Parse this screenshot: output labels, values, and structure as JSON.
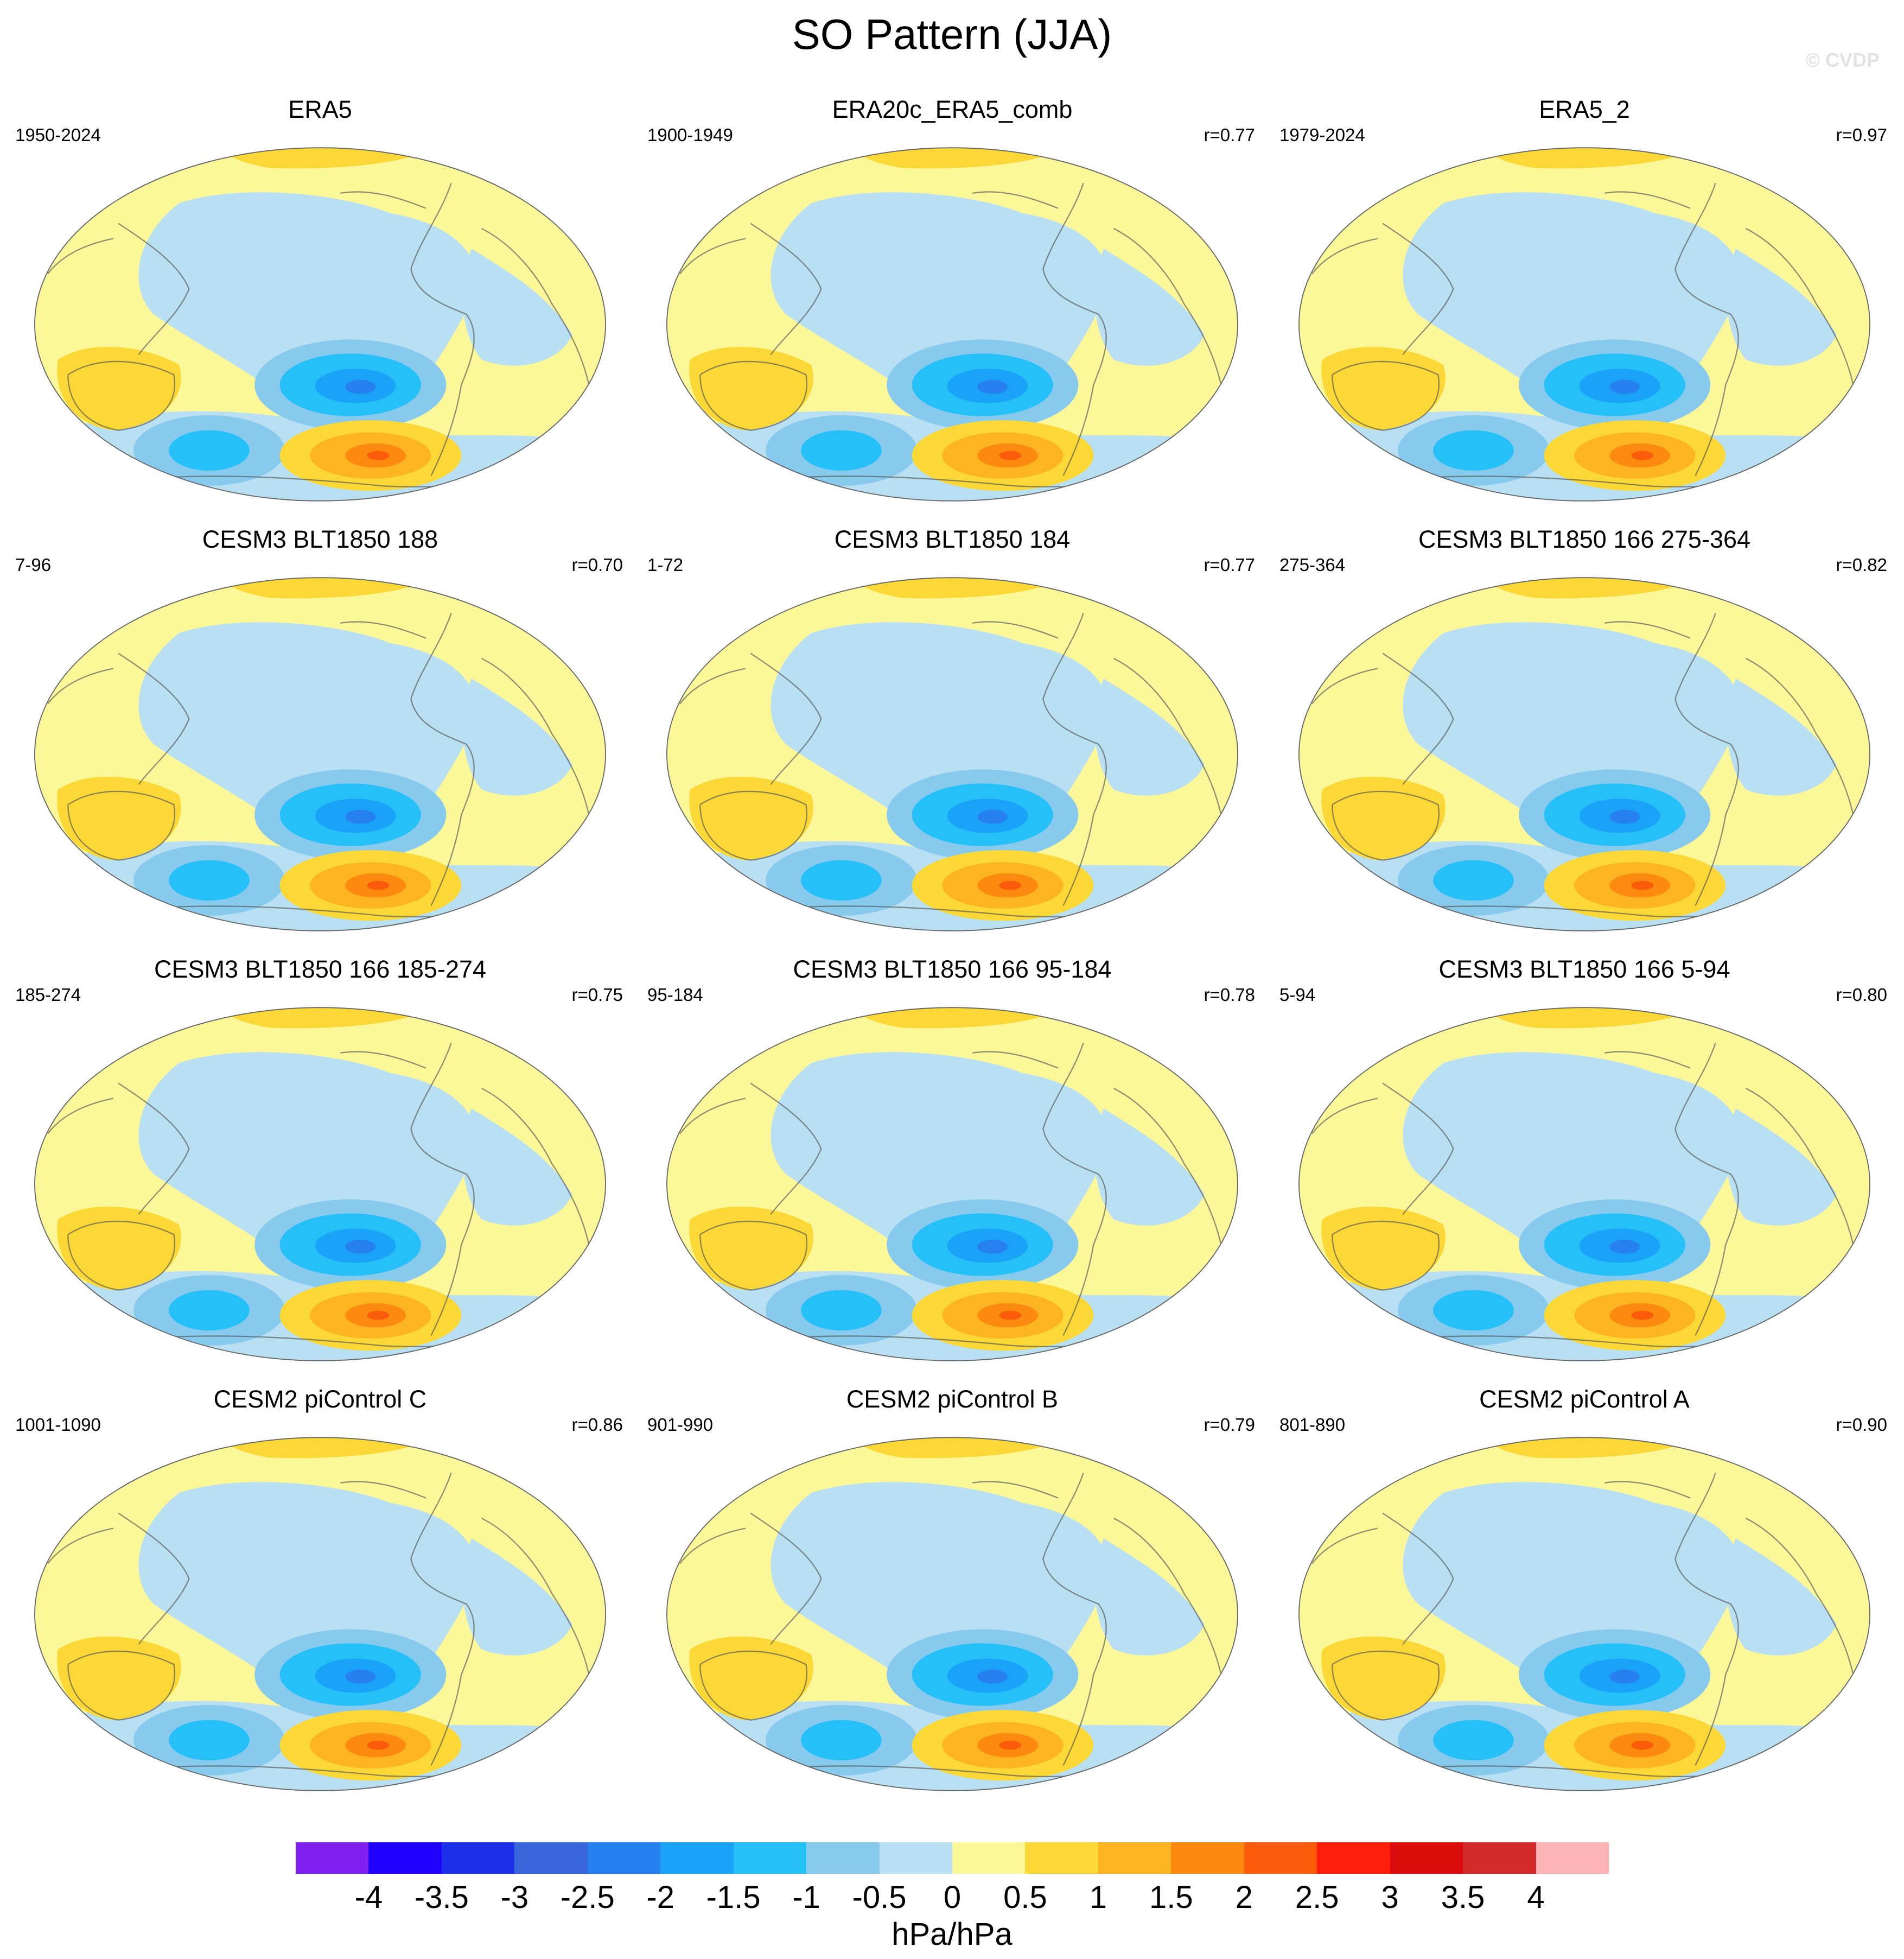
{
  "title": "SO Pattern (JJA)",
  "watermark": "© CVDP",
  "colorbar": {
    "labels": [
      "-4",
      "-3.5",
      "-3",
      "-2.5",
      "-2",
      "-1.5",
      "-1",
      "-0.5",
      "0",
      "0.5",
      "1",
      "1.5",
      "2",
      "2.5",
      "3",
      "3.5",
      "4"
    ],
    "colors": [
      "#8020f0",
      "#2000ff",
      "#1c30e8",
      "#3a66dc",
      "#2680f0",
      "#1aa2f8",
      "#26c0f8",
      "#88caee",
      "#b8e0f2",
      "#fcf89a",
      "#fcd836",
      "#fcb420",
      "#fc8a10",
      "#fc5c0a",
      "#fc1e0a",
      "#dc0c0c",
      "#d42a2a",
      "#fcb4b4"
    ],
    "unit": "hPa/hPa"
  },
  "panels": [
    {
      "title": "ERA5",
      "period": "1950-2024",
      "r": ""
    },
    {
      "title": "ERA20c_ERA5_comb",
      "period": "1900-1949",
      "r": "r=0.77"
    },
    {
      "title": "ERA5_2",
      "period": "1979-2024",
      "r": "r=0.97"
    },
    {
      "title": "CESM3 BLT1850 188",
      "period": "7-96",
      "r": "r=0.70"
    },
    {
      "title": "CESM3 BLT1850 184",
      "period": "1-72",
      "r": "r=0.77"
    },
    {
      "title": "CESM3 BLT1850 166 275-364",
      "period": "275-364",
      "r": "r=0.82"
    },
    {
      "title": "CESM3 BLT1850 166 185-274",
      "period": "185-274",
      "r": "r=0.75"
    },
    {
      "title": "CESM3 BLT1850 166 95-184",
      "period": "95-184",
      "r": "r=0.78"
    },
    {
      "title": "CESM3 BLT1850 166 5-94",
      "period": "5-94",
      "r": "r=0.80"
    },
    {
      "title": "CESM2 piControl C",
      "period": "1001-1090",
      "r": "r=0.86"
    },
    {
      "title": "CESM2 piControl B",
      "period": "901-990",
      "r": "r=0.79"
    },
    {
      "title": "CESM2 piControl A",
      "period": "801-890",
      "r": "r=0.90"
    }
  ]
}
